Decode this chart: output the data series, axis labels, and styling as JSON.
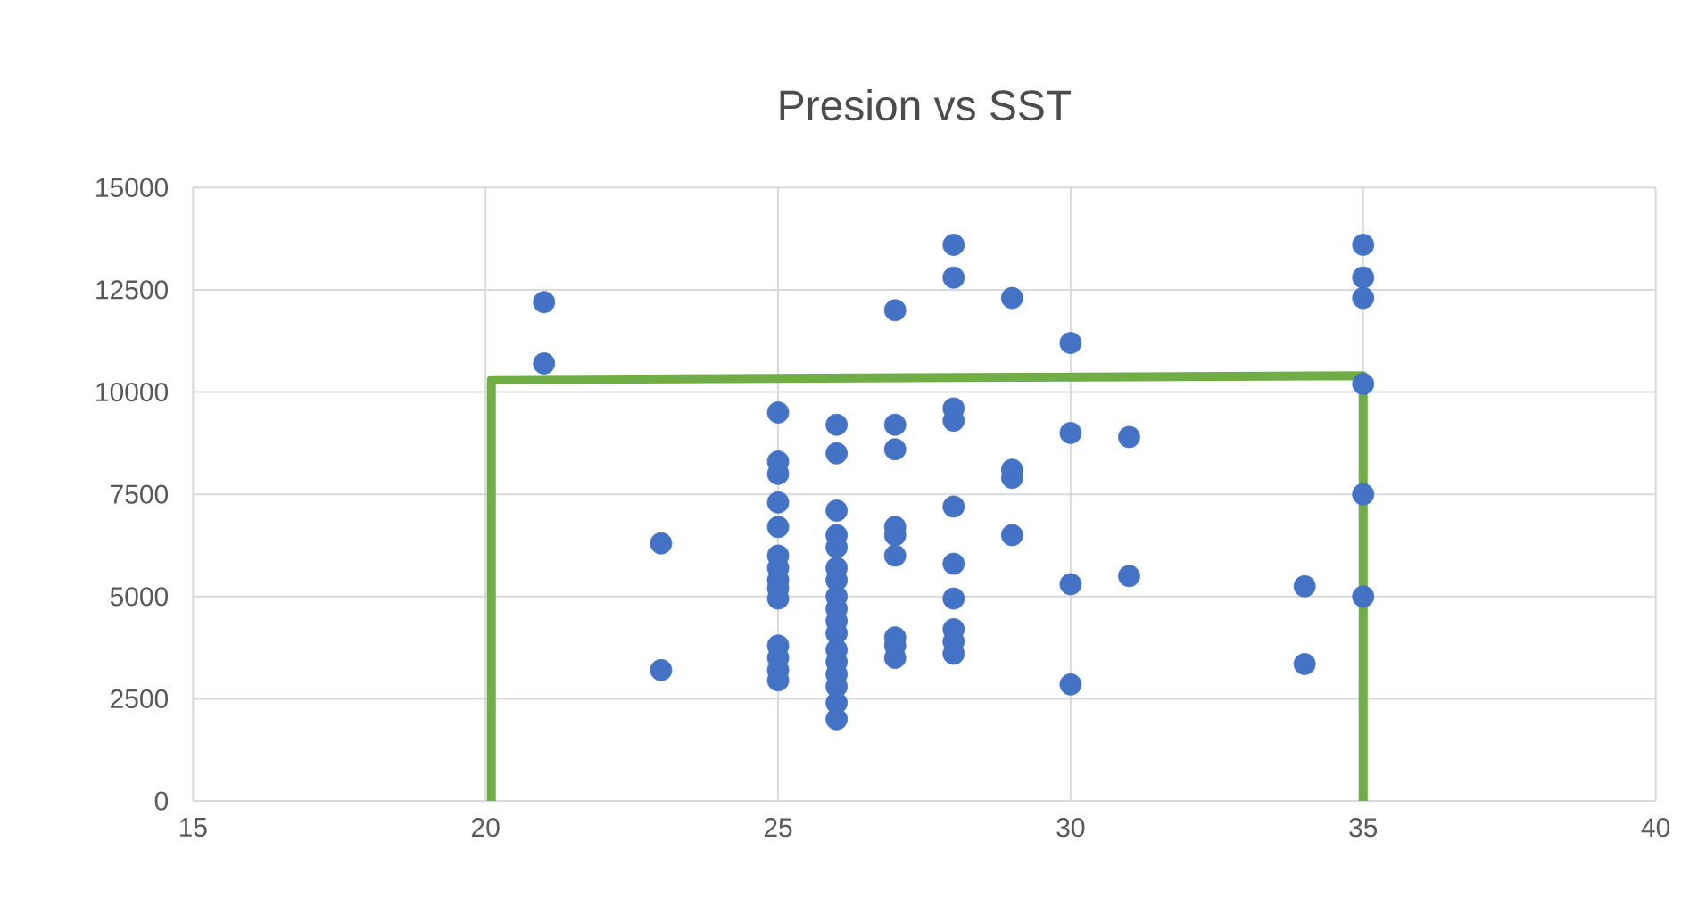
{
  "chart_data": {
    "type": "scatter",
    "title": "Presion vs SST",
    "xlim": [
      15,
      40
    ],
    "xticks": [
      15,
      20,
      25,
      30,
      35,
      40
    ],
    "ylim": [
      0,
      15000
    ],
    "yticks": [
      0,
      2500,
      5000,
      7500,
      10000,
      12500,
      15000
    ],
    "grid": true,
    "marker": "circle",
    "series": [
      {
        "color": "#4472c4",
        "x": [
          21,
          21,
          23,
          23,
          25,
          25,
          25,
          25,
          25,
          25,
          25,
          25,
          25,
          25,
          25,
          25,
          25,
          25,
          26,
          26,
          26,
          26,
          26,
          26,
          26,
          26,
          26,
          26,
          26,
          26,
          26,
          26,
          26,
          26,
          26,
          27,
          27,
          27,
          27,
          27,
          27,
          27,
          27,
          27,
          28,
          28,
          28,
          28,
          28,
          28,
          28,
          28,
          28,
          28,
          29,
          29,
          29,
          29,
          30,
          30,
          30,
          30,
          31,
          31,
          34,
          34,
          35,
          35,
          35,
          35,
          35,
          35
        ],
        "values": [
          12200,
          10700,
          6300,
          3200,
          9500,
          8300,
          8000,
          7300,
          6700,
          6000,
          5700,
          5400,
          5200,
          4950,
          3800,
          3500,
          3200,
          2950,
          9200,
          8500,
          7100,
          6500,
          6200,
          5700,
          5400,
          5000,
          4700,
          4400,
          4100,
          3700,
          3400,
          3100,
          2800,
          2400,
          2000,
          12000,
          9200,
          8600,
          6700,
          6500,
          6000,
          4000,
          3800,
          3500,
          13600,
          12800,
          9600,
          9300,
          7200,
          5800,
          4950,
          4200,
          3900,
          3600,
          12300,
          8100,
          7900,
          6500,
          11200,
          9000,
          5300,
          2850,
          8900,
          5500,
          5250,
          3350,
          13600,
          12800,
          12300,
          10200,
          7500,
          5000
        ]
      },
      {
        "type": "line",
        "color": "#70ad47",
        "marker": "none",
        "x": [
          20.1,
          20.1,
          35,
          35
        ],
        "values": [
          0,
          10300,
          10400,
          0
        ]
      }
    ]
  }
}
